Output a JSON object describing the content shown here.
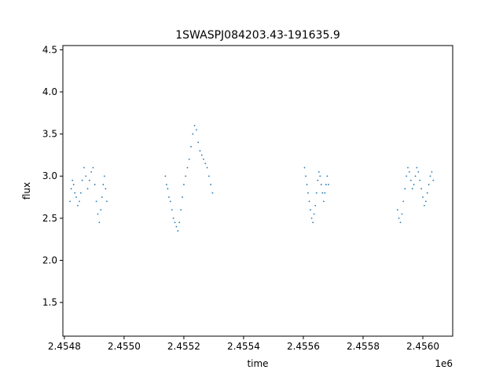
{
  "chart_data": {
    "type": "scatter",
    "title": "1SWASPJ084203.43-191635.9",
    "xlabel": "time",
    "ylabel": "flux",
    "x_offset_label": "1e6",
    "xlim": [
      2454795,
      2456100
    ],
    "ylim": [
      1.1,
      4.55
    ],
    "x_ticks": [
      2454800,
      2455000,
      2455200,
      2455400,
      2455600,
      2455800,
      2456000
    ],
    "x_tick_labels": [
      "2.4548",
      "2.4550",
      "2.4552",
      "2.4554",
      "2.4556",
      "2.4558",
      "2.4560"
    ],
    "y_ticks": [
      1.5,
      2.0,
      2.5,
      3.0,
      3.5,
      4.0,
      4.5
    ],
    "y_tick_labels": [
      "1.5",
      "2.0",
      "2.5",
      "3.0",
      "3.5",
      "4.0",
      "4.5"
    ],
    "grid": false,
    "marker_color": "#1f77b4",
    "series": [
      {
        "x": [
          2454819,
          2454823,
          2454827,
          2454831,
          2454835,
          2454840,
          2454845,
          2454850,
          2454855,
          2454860,
          2454866,
          2454872,
          2454878,
          2454884,
          2454890,
          2454896,
          2454902,
          2454907,
          2454912,
          2454917,
          2454922,
          2454926,
          2454930,
          2454934,
          2454938,
          2454942,
          2455138,
          2455142,
          2455146,
          2455150,
          2455155,
          2455160,
          2455165,
          2455170,
          2455175,
          2455180,
          2455185,
          2455190,
          2455195,
          2455200,
          2455206,
          2455212,
          2455218,
          2455224,
          2455230,
          2455236,
          2455242,
          2455248,
          2455254,
          2455260,
          2455266,
          2455272,
          2455278,
          2455284,
          2455290,
          2455296,
          2455604,
          2455608,
          2455612,
          2455616,
          2455620,
          2455624,
          2455628,
          2455632,
          2455636,
          2455640,
          2455644,
          2455648,
          2455652,
          2455656,
          2455660,
          2455664,
          2455668,
          2455672,
          2455676,
          2455680,
          2455684,
          2455915,
          2455920,
          2455925,
          2455930,
          2455935,
          2455940,
          2455945,
          2455950,
          2455955,
          2455960,
          2455965,
          2455970,
          2455975,
          2455980,
          2455985,
          2455990,
          2455995,
          2456000,
          2456005,
          2456010,
          2456015,
          2456020,
          2456025,
          2456030,
          2456035
        ],
        "y": [
          2.7,
          2.85,
          2.95,
          2.9,
          2.8,
          2.75,
          2.65,
          2.7,
          2.8,
          2.95,
          3.1,
          3.0,
          2.85,
          2.95,
          3.05,
          3.1,
          2.9,
          2.7,
          2.55,
          2.45,
          2.6,
          2.75,
          2.9,
          3.0,
          2.85,
          2.7,
          3.0,
          2.9,
          2.85,
          2.75,
          2.7,
          2.6,
          2.5,
          2.45,
          2.4,
          2.35,
          2.45,
          2.6,
          2.75,
          2.9,
          3.0,
          3.1,
          3.2,
          3.35,
          3.5,
          3.6,
          3.55,
          3.4,
          3.3,
          3.25,
          3.2,
          3.15,
          3.1,
          3.0,
          2.9,
          2.8,
          3.1,
          3.0,
          2.9,
          2.8,
          2.7,
          2.6,
          2.5,
          2.45,
          2.55,
          2.65,
          2.8,
          2.95,
          3.05,
          3.0,
          2.9,
          2.8,
          2.7,
          2.8,
          2.9,
          3.0,
          2.9,
          2.6,
          2.5,
          2.45,
          2.55,
          2.7,
          2.85,
          3.0,
          3.1,
          3.05,
          2.95,
          2.85,
          2.9,
          3.0,
          3.1,
          3.05,
          2.95,
          2.85,
          2.75,
          2.65,
          2.7,
          2.8,
          2.9,
          3.0,
          3.05,
          2.95
        ]
      }
    ]
  }
}
